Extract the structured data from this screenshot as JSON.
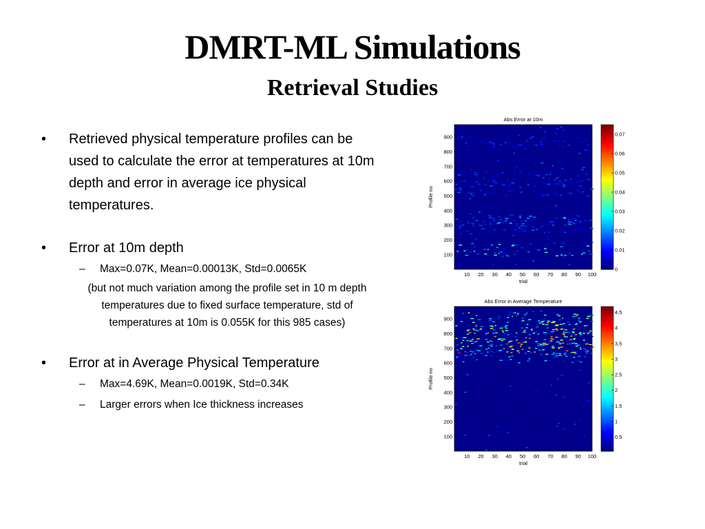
{
  "slide": {
    "title": "DMRT-ML Simulations",
    "subtitle": "Retrieval Studies"
  },
  "bullets": [
    {
      "text": "Retrieved physical temperature profiles can be used to calculate the error at temperatures at 10m depth and error in average ice physical temperatures.",
      "sub": []
    },
    {
      "text": "Error at 10m depth",
      "sub": [
        "Max=0.07K, Mean=0.00013K, Std=0.0065K"
      ],
      "note": "(but not much variation among the profile set in 10 m depth temperatures due to  fixed surface temperature, std of temperatures at 10m is 0.055K for this 985 cases)"
    },
    {
      "text": "Error at in Average Physical Temperature",
      "sub": [
        "Max=4.69K, Mean=0.0019K, Std=0.34K",
        "Larger errors when Ice thickness increases"
      ]
    }
  ],
  "chart_data": [
    {
      "type": "heatmap",
      "title": "Abs Error at 10m",
      "xlabel": "trial",
      "ylabel": "Profile no",
      "xlim": [
        1,
        100
      ],
      "ylim": [
        1,
        985
      ],
      "x_ticks": [
        10,
        20,
        30,
        40,
        50,
        60,
        70,
        80,
        90,
        100
      ],
      "y_ticks": [
        100,
        200,
        300,
        400,
        500,
        600,
        700,
        800,
        900
      ],
      "colorbar": {
        "range": [
          0,
          0.075
        ],
        "ticks": [
          "0",
          "0.01",
          "0.02",
          "0.03",
          "0.04",
          "0.05",
          "0.06",
          "0.07"
        ]
      },
      "background_value": 0.001,
      "hot_bands": [
        {
          "profile": 330,
          "level": 0.02
        },
        {
          "profile": 300,
          "level": 0.015
        },
        {
          "profile": 550,
          "level": 0.015
        },
        {
          "profile": 620,
          "level": 0.015
        },
        {
          "profile": 860,
          "level": 0.012
        },
        {
          "profile": 140,
          "level": 0.03
        }
      ]
    },
    {
      "type": "heatmap",
      "title": "Abs Error in Average Temperature",
      "xlabel": "trial",
      "ylabel": "Profile no",
      "xlim": [
        1,
        100
      ],
      "ylim": [
        1,
        985
      ],
      "x_ticks": [
        10,
        20,
        30,
        40,
        50,
        60,
        70,
        80,
        90,
        100
      ],
      "y_ticks": [
        100,
        200,
        300,
        400,
        500,
        600,
        700,
        800,
        900
      ],
      "colorbar": {
        "range": [
          0.05,
          4.69
        ],
        "ticks": [
          "0.5",
          "1",
          "1.5",
          "2",
          "2.5",
          "3",
          "3.5",
          "4",
          "4.5"
        ]
      },
      "background_value": 0.1,
      "hot_bands": [
        {
          "profile": 700,
          "level": 3.5
        },
        {
          "profile": 730,
          "level": 3.0
        },
        {
          "profile": 790,
          "level": 3.0
        },
        {
          "profile": 840,
          "level": 2.5
        },
        {
          "profile": 900,
          "level": 2.5
        },
        {
          "profile": 650,
          "level": 1.5
        }
      ]
    }
  ],
  "colors": {
    "heat_bg": "#3333cc"
  }
}
